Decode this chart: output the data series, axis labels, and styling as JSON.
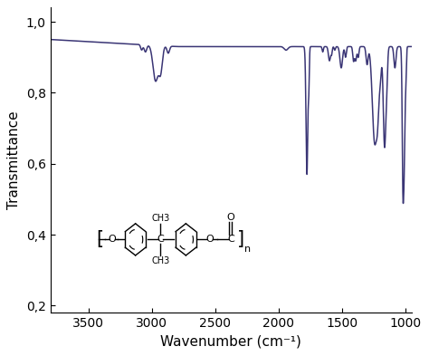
{
  "line_color": "#3a3575",
  "background_color": "#ffffff",
  "xlabel": "Wavenumber (cm⁻¹)",
  "ylabel": "Transmittance",
  "xlim": [
    950,
    3800
  ],
  "ylim": [
    0.18,
    1.04
  ],
  "xticks": [
    3500,
    3000,
    2500,
    2000,
    1500,
    1000
  ],
  "yticks": [
    0.2,
    0.4,
    0.6,
    0.8,
    1.0
  ],
  "ytick_labels": [
    "0,2",
    "0,4",
    "0,6",
    "0,8",
    "1,0"
  ],
  "line_width": 1.1
}
